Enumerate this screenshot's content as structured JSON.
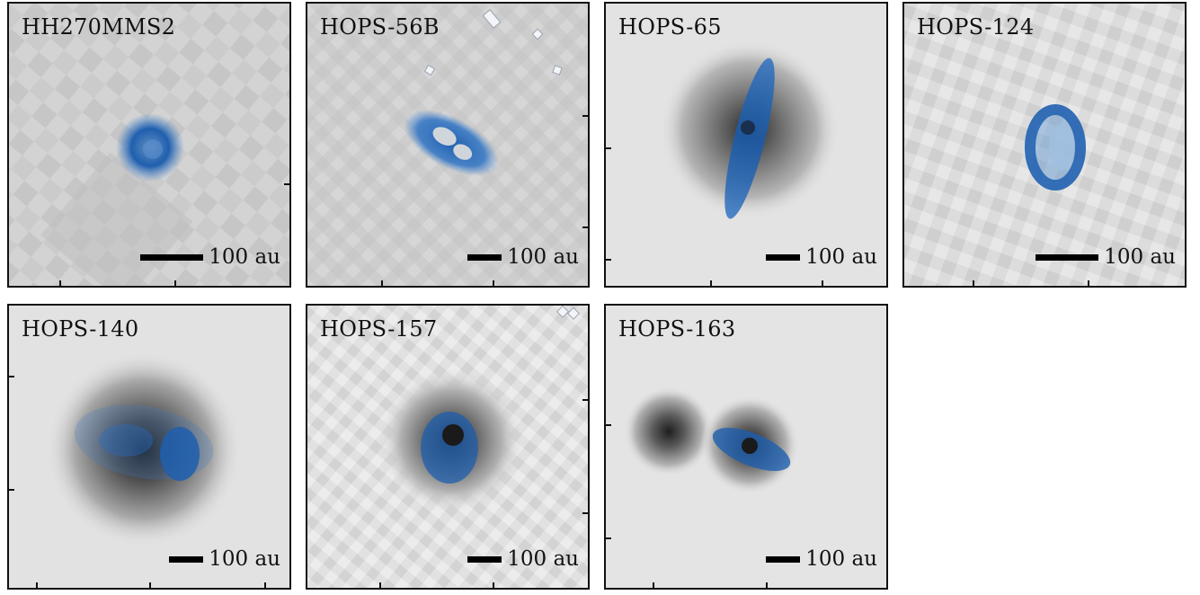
{
  "colors": {
    "blob": "#2a6fc2",
    "frame": "#111111"
  },
  "panels": [
    {
      "name": "HH270MMS2",
      "scale_label": "100 au",
      "bar": "long"
    },
    {
      "name": "HOPS-56B",
      "scale_label": "100 au",
      "bar": "short"
    },
    {
      "name": "HOPS-65",
      "scale_label": "100 au",
      "bar": "short"
    },
    {
      "name": "HOPS-124",
      "scale_label": "100 au",
      "bar": "long"
    },
    {
      "name": "HOPS-140",
      "scale_label": "100 au",
      "bar": "short"
    },
    {
      "name": "HOPS-157",
      "scale_label": "100 au",
      "bar": "short"
    },
    {
      "name": "HOPS-163",
      "scale_label": "100 au",
      "bar": "short"
    }
  ]
}
